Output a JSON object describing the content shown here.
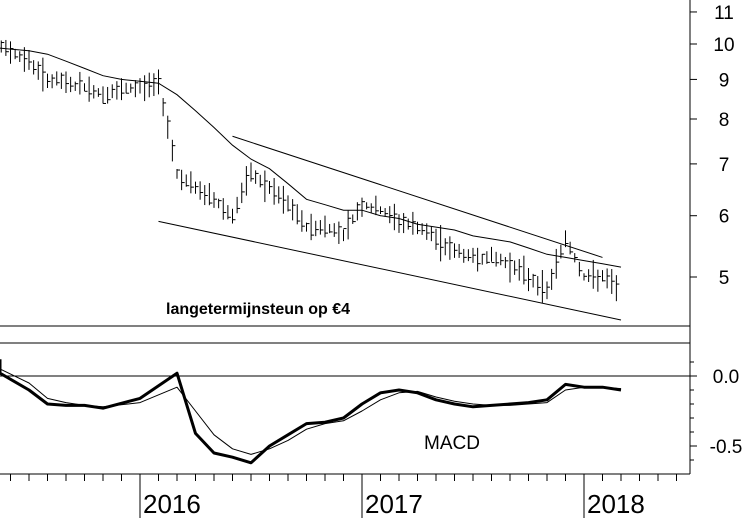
{
  "chart_data": [
    {
      "type": "ohlc",
      "panel": "price",
      "yscale": "log",
      "ylim": [
        4.3,
        11.4
      ],
      "yticks": [
        "11",
        "10",
        "9",
        "8",
        "7",
        "6",
        "5"
      ],
      "annotation": "langetermijnsteun op €4",
      "x": [
        "2015-03",
        "2015-04",
        "2015-05",
        "2015-06",
        "2015-07",
        "2015-08",
        "2015-09",
        "2015-10",
        "2015-11",
        "2015-12",
        "2016-01",
        "2016-02",
        "2016-03",
        "2016-04",
        "2016-05",
        "2016-06",
        "2016-07",
        "2016-08",
        "2016-09",
        "2016-10",
        "2016-11",
        "2016-12",
        "2017-01",
        "2017-02",
        "2017-03",
        "2017-04",
        "2017-05",
        "2017-06",
        "2017-07",
        "2017-08",
        "2017-09",
        "2017-10",
        "2017-11",
        "2017-12",
        "2018-01",
        "2018-02",
        "2018-03"
      ],
      "close": [
        10.3,
        10.2,
        10.0,
        9.8,
        9.5,
        9.0,
        8.9,
        8.8,
        8.6,
        8.7,
        8.8,
        8.9,
        6.8,
        6.5,
        6.3,
        6.0,
        6.8,
        6.5,
        6.2,
        5.8,
        5.8,
        5.7,
        6.2,
        6.1,
        5.9,
        5.8,
        5.6,
        5.4,
        5.3,
        5.3,
        5.2,
        5.0,
        4.8,
        5.6,
        5.0,
        5.0,
        4.8
      ],
      "series": [
        {
          "name": "",
          "kind": "moving-average",
          "values": [
            10.0,
            9.95,
            9.9,
            9.85,
            9.8,
            9.7,
            9.5,
            9.3,
            9.1,
            9.0,
            8.95,
            8.9,
            8.6,
            8.2,
            7.8,
            7.4,
            7.1,
            6.9,
            6.6,
            6.3,
            6.2,
            6.1,
            6.1,
            6.0,
            5.95,
            5.85,
            5.8,
            5.75,
            5.65,
            5.6,
            5.55,
            5.45,
            5.35,
            5.3,
            5.25,
            5.2,
            5.15
          ]
        }
      ],
      "trendlines": [
        {
          "name": "",
          "from": [
            "2016-06",
            7.6
          ],
          "to": [
            "2018-02",
            5.3
          ]
        },
        {
          "name": "",
          "from": [
            "2016-02",
            5.9
          ],
          "to": [
            "2018-03",
            4.4
          ]
        }
      ]
    },
    {
      "type": "line",
      "panel": "indicator",
      "title": "MACD",
      "ylim": [
        -0.72,
        0.22
      ],
      "yticks": [
        "0.0",
        "-0.5"
      ],
      "x": [
        "2015-01",
        "2015-03",
        "2015-05",
        "2015-07",
        "2015-08",
        "2015-09",
        "2015-10",
        "2015-11",
        "2016-01",
        "2016-03",
        "2016-04",
        "2016-05",
        "2016-06",
        "2016-07",
        "2016-08",
        "2016-09",
        "2016-10",
        "2016-11",
        "2016-12",
        "2017-01",
        "2017-02",
        "2017-03",
        "2017-04",
        "2017-05",
        "2017-06",
        "2017-07",
        "2017-08",
        "2017-09",
        "2017-10",
        "2017-11",
        "2017-12",
        "2018-01",
        "2018-02",
        "2018-03"
      ],
      "series": [
        {
          "name": "",
          "style": "thick",
          "values": [
            0.12,
            0.11,
            0.02,
            -0.1,
            -0.2,
            -0.21,
            -0.21,
            -0.23,
            -0.16,
            0.02,
            -0.41,
            -0.55,
            -0.58,
            -0.62,
            -0.5,
            -0.42,
            -0.34,
            -0.33,
            -0.3,
            -0.2,
            -0.12,
            -0.1,
            -0.12,
            -0.17,
            -0.2,
            -0.22,
            -0.21,
            -0.2,
            -0.19,
            -0.17,
            -0.06,
            -0.08,
            -0.08,
            -0.1
          ]
        },
        {
          "name": "",
          "style": "thin",
          "values": [
            0.08,
            0.08,
            0.05,
            -0.05,
            -0.16,
            -0.19,
            -0.21,
            -0.22,
            -0.19,
            -0.08,
            -0.25,
            -0.42,
            -0.52,
            -0.56,
            -0.52,
            -0.46,
            -0.38,
            -0.34,
            -0.32,
            -0.25,
            -0.17,
            -0.12,
            -0.11,
            -0.15,
            -0.18,
            -0.2,
            -0.21,
            -0.21,
            -0.2,
            -0.19,
            -0.1,
            -0.08,
            -0.08,
            -0.09
          ]
        }
      ],
      "zero_line": true
    }
  ],
  "x_axis": {
    "labels": [
      "2016",
      "2017",
      "2018"
    ]
  },
  "colors": {
    "background": "#ffffff",
    "ink": "#000000"
  }
}
